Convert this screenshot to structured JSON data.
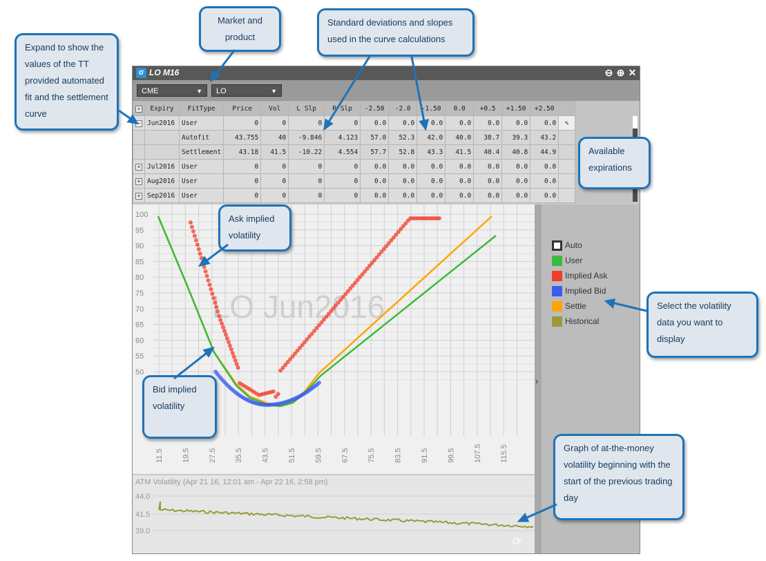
{
  "window": {
    "title": "LO M16",
    "logo": "σ"
  },
  "toolbar": {
    "market": "CME",
    "product": "LO"
  },
  "table": {
    "headers": [
      "Expiry",
      "FitType",
      "Price",
      "Vol",
      "L Slp",
      "R Slp",
      "-2.50",
      "-2.0",
      "-1.50",
      "0.0",
      "+0.5",
      "+1.50",
      "+2.50"
    ],
    "rows": [
      {
        "expiry": "Jun2016",
        "fit": "User",
        "vals": [
          "0",
          "0",
          "0",
          "0",
          "0.0",
          "0.0",
          "0.0",
          "0.0",
          "0.0",
          "0.0",
          "0.0"
        ],
        "expanded": true
      },
      {
        "expiry": "",
        "fit": "Autofit",
        "vals": [
          "43.755",
          "40",
          "-9.846",
          "4.123",
          "57.0",
          "52.3",
          "42.0",
          "40.0",
          "38.7",
          "39.3",
          "43.2"
        ]
      },
      {
        "expiry": "",
        "fit": "Settlement",
        "vals": [
          "43.18",
          "41.5",
          "-10.22",
          "4.554",
          "57.7",
          "52.8",
          "43.3",
          "41.5",
          "40.4",
          "40.8",
          "44.9"
        ]
      },
      {
        "expiry": "Jul2016",
        "fit": "User",
        "vals": [
          "0",
          "0",
          "0",
          "0",
          "0.0",
          "0.0",
          "0.0",
          "0.0",
          "0.0",
          "0.0",
          "0.0"
        ]
      },
      {
        "expiry": "Aug2016",
        "fit": "User",
        "vals": [
          "0",
          "0",
          "0",
          "0",
          "0.0",
          "0.0",
          "0.0",
          "0.0",
          "0.0",
          "0.0",
          "0.0"
        ]
      },
      {
        "expiry": "Sep2016",
        "fit": "User",
        "vals": [
          "0",
          "0",
          "0",
          "0",
          "0.0",
          "0.0",
          "0.0",
          "0.0",
          "0.0",
          "0.0",
          "0.0"
        ]
      }
    ]
  },
  "chart": {
    "watermark": "LO Jun2016",
    "x_ticks": [
      "11.5",
      "19.5",
      "27.5",
      "35.5",
      "43.5",
      "51.5",
      "59.5",
      "67.5",
      "75.5",
      "83.5",
      "91.5",
      "99.5",
      "107.5",
      "115.5"
    ],
    "y_ticks": [
      "100",
      "95",
      "90",
      "85",
      "80",
      "75",
      "70",
      "65",
      "60",
      "55",
      "50"
    ]
  },
  "legend": [
    {
      "label": "Auto",
      "color": "#ffffff",
      "border": "#333333"
    },
    {
      "label": "User",
      "color": "#3cb93c"
    },
    {
      "label": "Implied Ask",
      "color": "#f23c2c"
    },
    {
      "label": "Implied Bid",
      "color": "#3a5cf0"
    },
    {
      "label": "Settle",
      "color": "#ffa500"
    },
    {
      "label": "Historical",
      "color": "#9a9a3a"
    }
  ],
  "atm": {
    "label": "ATM Volatility (Apr 21 16, 12:01 am - Apr 22 16, 2:58 pm)",
    "y_ticks": [
      "44.0",
      "41.5",
      "39.0"
    ]
  },
  "callouts": {
    "expand": "Expand to show the values of the TT provided automated fit and the settlement curve",
    "market": "Market and product",
    "stddev": "Standard deviations and slopes used in the curve calculations",
    "expirations": "Available expirations",
    "ask": "Ask implied volatility",
    "bid": "Bid implied volatility",
    "select": "Select the volatility data you want to display",
    "atm": "Graph of at-the-money volatility beginning with the start of the previous trading day"
  },
  "colors": {
    "accent": "#1e73b8",
    "user": "#3cb93c",
    "ask": "#f23c2c",
    "bid": "#3a5cf0",
    "settle": "#ffa500",
    "hist": "#9a9a3a"
  }
}
